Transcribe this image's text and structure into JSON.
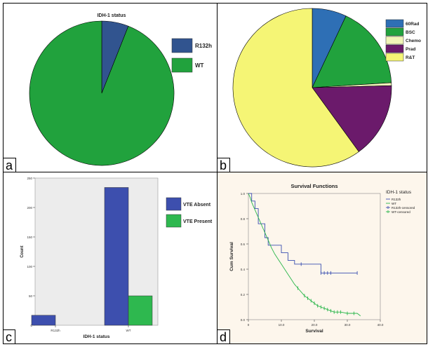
{
  "panels": [
    {
      "letter": "a"
    },
    {
      "letter": "b"
    },
    {
      "letter": "c"
    },
    {
      "letter": "d"
    }
  ],
  "chart_data": [
    {
      "id": "a",
      "type": "pie",
      "title": "IDH-1 status",
      "legend_position": "right",
      "slices": [
        {
          "label": "R132h",
          "value": 6,
          "color": "#31548f"
        },
        {
          "label": "WT",
          "value": 94,
          "color": "#21a23d"
        }
      ]
    },
    {
      "id": "b",
      "type": "pie",
      "title": "",
      "legend_position": "top-right",
      "slices": [
        {
          "label": "60Rad",
          "value": 7,
          "color": "#2e6fb5"
        },
        {
          "label": "BSC",
          "value": 17,
          "color": "#21a23d"
        },
        {
          "label": "Chemo",
          "value": 0.6,
          "color": "#f1f5b8"
        },
        {
          "label": "Prad",
          "value": 15.4,
          "color": "#6b1a6b"
        },
        {
          "label": "R&T",
          "value": 60,
          "color": "#f5f575"
        }
      ]
    },
    {
      "id": "c",
      "type": "bar",
      "title": "",
      "xlabel": "IDH-1 status",
      "ylabel": "Count",
      "categories": [
        "R132h",
        "WT"
      ],
      "ylim": [
        0,
        250
      ],
      "yticks": [
        0,
        50,
        100,
        150,
        200,
        250
      ],
      "legend_position": "right",
      "series": [
        {
          "name": "VTE Absent",
          "values": [
            17,
            234
          ],
          "color": "#3d4fae"
        },
        {
          "name": "VTE Present",
          "values": [
            0,
            50
          ],
          "color": "#2eb84f"
        }
      ]
    },
    {
      "id": "d",
      "type": "line",
      "title": "Survival Functions",
      "xlabel": "Survival",
      "ylabel": "Cum Survival",
      "xlim": [
        0,
        40
      ],
      "ylim": [
        0,
        1.0
      ],
      "xticks": [
        "0",
        "10.0",
        "20.0",
        "30.0",
        "40.0"
      ],
      "yticks": [
        "0.0",
        "0.2",
        "0.4",
        "0.6",
        "0.8",
        "1.0"
      ],
      "legend_title": "IDH-1 status",
      "legend_position": "top-right",
      "legend_items": [
        "R132h",
        "WT",
        "R132h-censored",
        "WT-censored"
      ],
      "series": [
        {
          "name": "R132h",
          "color": "#3a4fb0",
          "x": [
            0,
            1,
            1,
            2,
            2,
            3,
            3,
            5,
            5,
            6,
            6,
            10,
            10,
            12,
            12,
            14,
            14,
            22,
            22,
            33
          ],
          "y": [
            1.0,
            1.0,
            0.94,
            0.94,
            0.88,
            0.88,
            0.76,
            0.76,
            0.65,
            0.65,
            0.59,
            0.59,
            0.53,
            0.53,
            0.47,
            0.47,
            0.44,
            0.44,
            0.37,
            0.37
          ]
        },
        {
          "name": "WT",
          "color": "#29b64a",
          "x": [
            0,
            0.5,
            1,
            2,
            3,
            4,
            5,
            6,
            7,
            8,
            9,
            10,
            11,
            12,
            13,
            14,
            15,
            16,
            17,
            18,
            19,
            20,
            21,
            22,
            23,
            24,
            25,
            26,
            28,
            30,
            32,
            33,
            34
          ],
          "y": [
            1.0,
            0.97,
            0.93,
            0.87,
            0.81,
            0.75,
            0.69,
            0.63,
            0.57,
            0.52,
            0.48,
            0.44,
            0.4,
            0.36,
            0.32,
            0.28,
            0.25,
            0.22,
            0.19,
            0.17,
            0.15,
            0.13,
            0.11,
            0.1,
            0.09,
            0.08,
            0.07,
            0.06,
            0.06,
            0.05,
            0.05,
            0.05,
            0.03
          ]
        }
      ],
      "censored": [
        {
          "series": "R132h",
          "x": [
            16,
            22,
            23,
            24,
            25,
            33
          ],
          "y": [
            0.44,
            0.37,
            0.37,
            0.37,
            0.37,
            0.37
          ]
        },
        {
          "series": "WT",
          "x": [
            15,
            17,
            18,
            19,
            20,
            21,
            22,
            23,
            24,
            25,
            26,
            27,
            28,
            30,
            32
          ],
          "y": [
            0.25,
            0.19,
            0.17,
            0.15,
            0.13,
            0.11,
            0.1,
            0.09,
            0.08,
            0.07,
            0.06,
            0.06,
            0.06,
            0.05,
            0.05
          ]
        }
      ]
    }
  ]
}
